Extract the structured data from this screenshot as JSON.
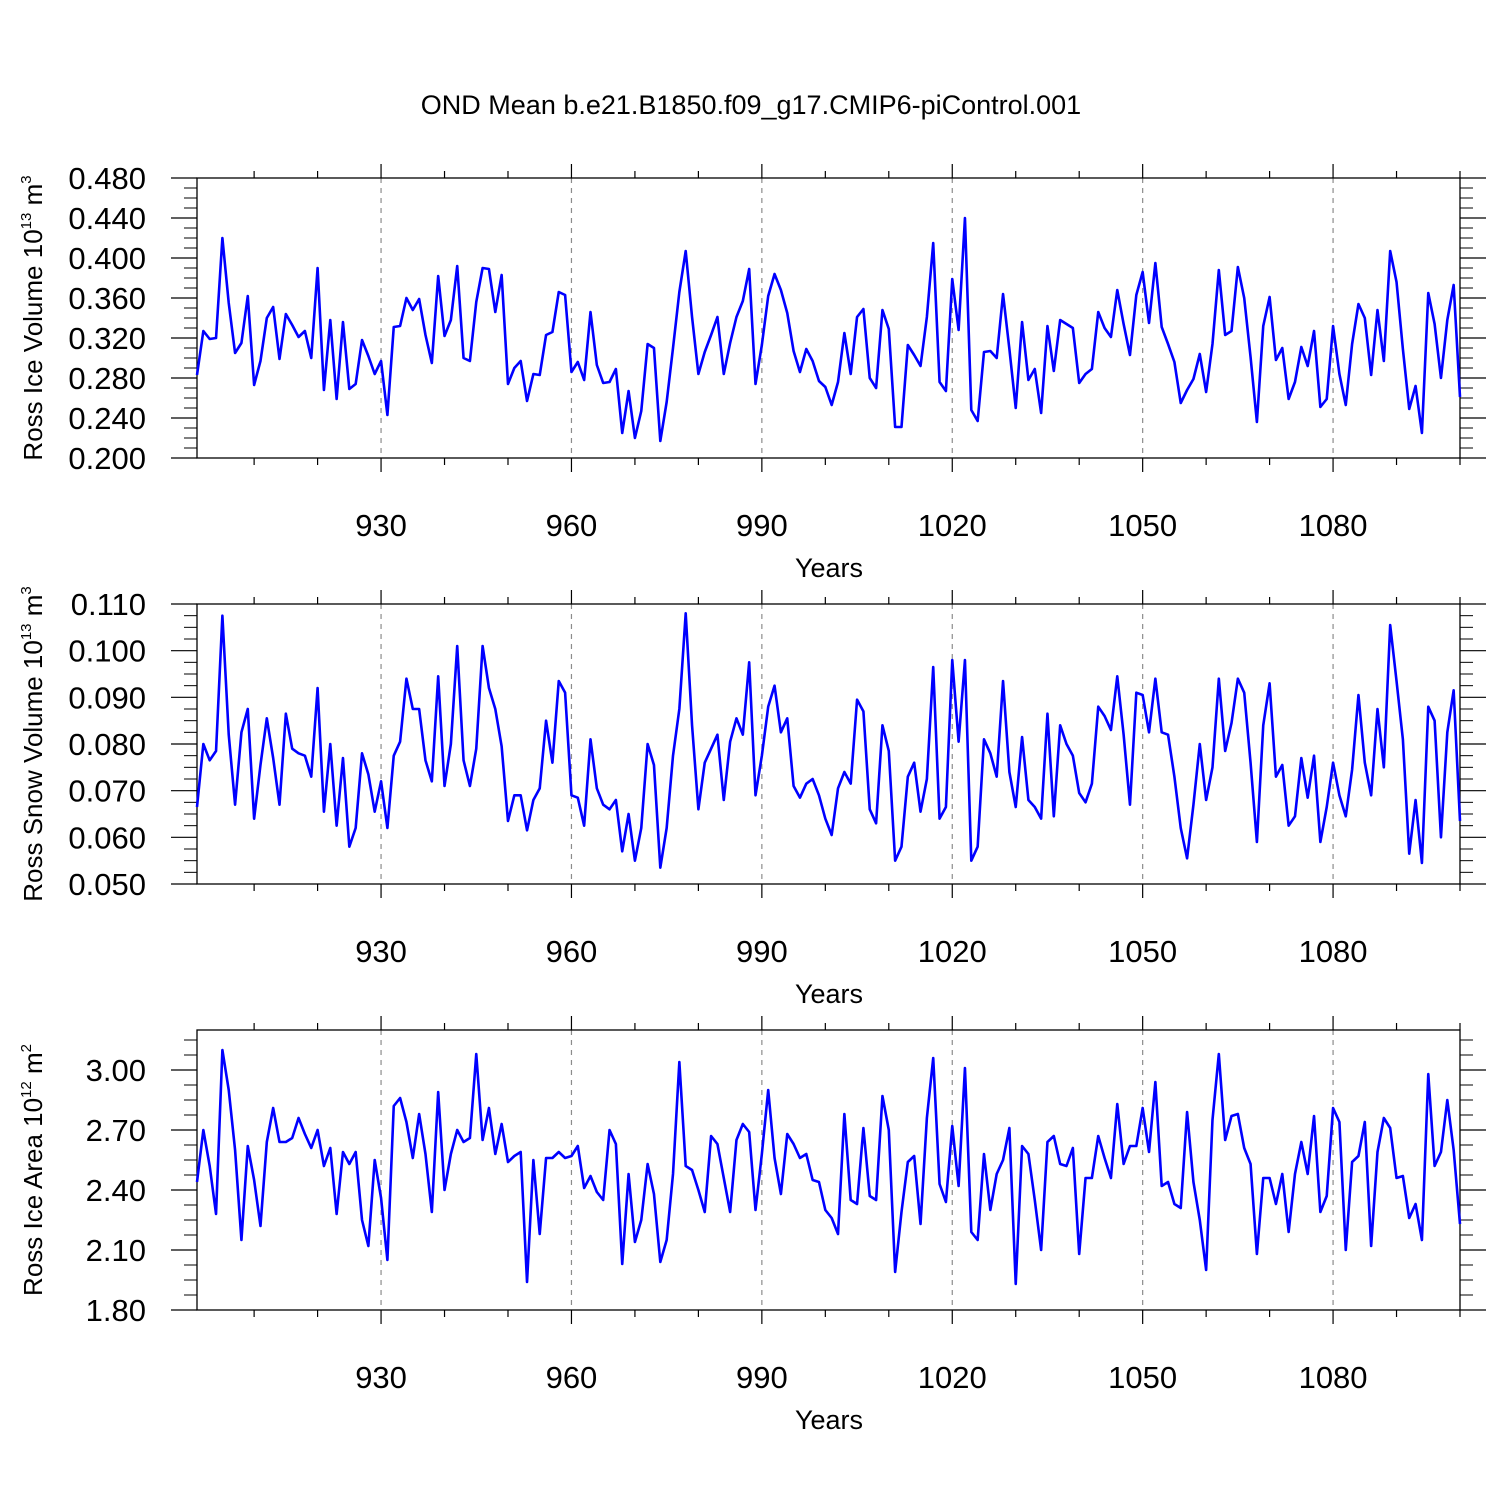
{
  "title": "OND Mean b.e21.B1850.f09_g17.CMIP6-piControl.001",
  "colors": {
    "line": "#0000ff",
    "axis": "#000000",
    "grid": "#8c8c8c"
  },
  "chart_data": [
    {
      "type": "line",
      "name": "ice-volume",
      "title": "OND Mean b.e21.B1850.f09_g17.CMIP6-piControl.001",
      "ylabel": {
        "base": "Ross Ice Volume 10",
        "sup": "13",
        "unit": " m",
        "unit_sup": "3"
      },
      "xlabel": "Years",
      "xlim": [
        901,
        1100
      ],
      "ylim": [
        0.2,
        0.48
      ],
      "yticks": [
        0.2,
        0.24,
        0.28,
        0.32,
        0.36,
        0.4,
        0.44,
        0.48
      ],
      "ytick_labels": [
        "0.200",
        "0.240",
        "0.280",
        "0.320",
        "0.360",
        "0.400",
        "0.440",
        "0.480"
      ],
      "xticks": [
        930,
        960,
        990,
        1020,
        1050,
        1080
      ],
      "xtick_labels": [
        "930",
        "960",
        "990",
        "1020",
        "1050",
        "1080"
      ],
      "grid": "x-dashed",
      "x_start": 901,
      "series": [
        {
          "name": "Ross Ice Volume",
          "values": [
            0.283,
            0.327,
            0.319,
            0.32,
            0.42,
            0.355,
            0.305,
            0.315,
            0.362,
            0.273,
            0.297,
            0.34,
            0.351,
            0.299,
            0.344,
            0.333,
            0.321,
            0.327,
            0.3,
            0.39,
            0.268,
            0.338,
            0.259,
            0.336,
            0.269,
            0.274,
            0.318,
            0.302,
            0.284,
            0.297,
            0.243,
            0.331,
            0.332,
            0.36,
            0.348,
            0.359,
            0.323,
            0.295,
            0.382,
            0.322,
            0.338,
            0.392,
            0.3,
            0.297,
            0.356,
            0.39,
            0.389,
            0.346,
            0.383,
            0.274,
            0.29,
            0.297,
            0.257,
            0.284,
            0.283,
            0.323,
            0.326,
            0.366,
            0.363,
            0.286,
            0.296,
            0.278,
            0.346,
            0.293,
            0.275,
            0.276,
            0.289,
            0.225,
            0.267,
            0.22,
            0.247,
            0.314,
            0.31,
            0.217,
            0.256,
            0.31,
            0.366,
            0.407,
            0.341,
            0.284,
            0.306,
            0.323,
            0.341,
            0.284,
            0.315,
            0.341,
            0.357,
            0.389,
            0.274,
            0.313,
            0.362,
            0.384,
            0.368,
            0.345,
            0.307,
            0.286,
            0.309,
            0.297,
            0.277,
            0.271,
            0.253,
            0.276,
            0.325,
            0.284,
            0.341,
            0.349,
            0.28,
            0.27,
            0.348,
            0.329,
            0.231,
            0.231,
            0.313,
            0.303,
            0.292,
            0.341,
            0.415,
            0.276,
            0.267,
            0.379,
            0.328,
            0.44,
            0.248,
            0.237,
            0.306,
            0.307,
            0.3,
            0.364,
            0.309,
            0.25,
            0.336,
            0.278,
            0.289,
            0.245,
            0.332,
            0.287,
            0.338,
            0.334,
            0.33,
            0.275,
            0.284,
            0.289,
            0.346,
            0.33,
            0.321,
            0.368,
            0.334,
            0.303,
            0.363,
            0.386,
            0.335,
            0.395,
            0.331,
            0.314,
            0.296,
            0.255,
            0.268,
            0.279,
            0.304,
            0.266,
            0.314,
            0.388,
            0.323,
            0.327,
            0.391,
            0.36,
            0.301,
            0.236,
            0.332,
            0.361,
            0.298,
            0.31,
            0.259,
            0.276,
            0.311,
            0.292,
            0.327,
            0.251,
            0.259,
            0.332,
            0.284,
            0.253,
            0.314,
            0.354,
            0.34,
            0.283,
            0.348,
            0.297,
            0.407,
            0.376,
            0.309,
            0.249,
            0.272,
            0.225,
            0.365,
            0.334,
            0.28,
            0.338,
            0.373,
            0.261
          ]
        }
      ]
    },
    {
      "type": "line",
      "name": "snow-volume",
      "ylabel": {
        "base": "Ross Snow Volume 10",
        "sup": "13",
        "unit": " m",
        "unit_sup": "3"
      },
      "xlabel": "Years",
      "xlim": [
        901,
        1100
      ],
      "ylim": [
        0.05,
        0.11
      ],
      "yticks": [
        0.05,
        0.06,
        0.07,
        0.08,
        0.09,
        0.1,
        0.11
      ],
      "ytick_labels": [
        "0.050",
        "0.060",
        "0.070",
        "0.080",
        "0.090",
        "0.100",
        "0.110"
      ],
      "xticks": [
        930,
        960,
        990,
        1020,
        1050,
        1080
      ],
      "xtick_labels": [
        "930",
        "960",
        "990",
        "1020",
        "1050",
        "1080"
      ],
      "grid": "x-dashed",
      "x_start": 901,
      "series": [
        {
          "name": "Ross Snow Volume",
          "values": [
            0.0665,
            0.08,
            0.0765,
            0.0785,
            0.1075,
            0.082,
            0.067,
            0.0825,
            0.0875,
            0.064,
            0.0755,
            0.0855,
            0.077,
            0.067,
            0.0865,
            0.079,
            0.078,
            0.0775,
            0.073,
            0.092,
            0.0655,
            0.08,
            0.0625,
            0.077,
            0.058,
            0.062,
            0.078,
            0.0735,
            0.0655,
            0.072,
            0.062,
            0.0775,
            0.0805,
            0.094,
            0.0875,
            0.0875,
            0.0765,
            0.072,
            0.0945,
            0.071,
            0.08,
            0.101,
            0.0765,
            0.071,
            0.079,
            0.101,
            0.092,
            0.0875,
            0.0795,
            0.0635,
            0.069,
            0.069,
            0.0615,
            0.068,
            0.0705,
            0.085,
            0.076,
            0.0935,
            0.091,
            0.069,
            0.0685,
            0.0625,
            0.081,
            0.0705,
            0.067,
            0.066,
            0.068,
            0.057,
            0.065,
            0.055,
            0.062,
            0.08,
            0.0755,
            0.0535,
            0.062,
            0.0775,
            0.0875,
            0.108,
            0.084,
            0.066,
            0.076,
            0.079,
            0.082,
            0.068,
            0.0805,
            0.0855,
            0.082,
            0.0975,
            0.069,
            0.0775,
            0.088,
            0.0925,
            0.0825,
            0.0855,
            0.071,
            0.0685,
            0.0715,
            0.0725,
            0.069,
            0.064,
            0.0605,
            0.0705,
            0.074,
            0.0715,
            0.0895,
            0.087,
            0.066,
            0.063,
            0.084,
            0.0785,
            0.055,
            0.058,
            0.073,
            0.076,
            0.0655,
            0.0725,
            0.0965,
            0.064,
            0.0665,
            0.098,
            0.0805,
            0.098,
            0.055,
            0.058,
            0.081,
            0.078,
            0.073,
            0.0935,
            0.074,
            0.0665,
            0.0815,
            0.068,
            0.0665,
            0.064,
            0.0865,
            0.0645,
            0.084,
            0.08,
            0.0775,
            0.0695,
            0.0675,
            0.0715,
            0.088,
            0.086,
            0.083,
            0.0945,
            0.082,
            0.067,
            0.091,
            0.0905,
            0.0825,
            0.094,
            0.0825,
            0.082,
            0.073,
            0.062,
            0.0555,
            0.067,
            0.08,
            0.068,
            0.075,
            0.094,
            0.0785,
            0.0845,
            0.094,
            0.091,
            0.076,
            0.059,
            0.084,
            0.093,
            0.073,
            0.0755,
            0.0625,
            0.0645,
            0.077,
            0.0685,
            0.0775,
            0.059,
            0.0665,
            0.076,
            0.069,
            0.0645,
            0.0745,
            0.0905,
            0.076,
            0.069,
            0.0875,
            0.075,
            0.1055,
            0.0935,
            0.081,
            0.0565,
            0.068,
            0.0545,
            0.088,
            0.085,
            0.06,
            0.0825,
            0.0915,
            0.0635
          ]
        }
      ]
    },
    {
      "type": "line",
      "name": "ice-area",
      "ylabel": {
        "base": "Ross Ice Area 10",
        "sup": "12",
        "unit": " m",
        "unit_sup": "2"
      },
      "xlabel": "Years",
      "xlim": [
        901,
        1100
      ],
      "ylim": [
        1.8,
        3.2
      ],
      "yticks": [
        1.8,
        2.1,
        2.4,
        2.7,
        3.0
      ],
      "ytick_labels": [
        "1.80",
        "2.10",
        "2.40",
        "2.70",
        "3.00"
      ],
      "xticks": [
        930,
        960,
        990,
        1020,
        1050,
        1080
      ],
      "xtick_labels": [
        "930",
        "960",
        "990",
        "1020",
        "1050",
        "1080"
      ],
      "grid": "x-dashed",
      "x_start": 901,
      "series": [
        {
          "name": "Ross Ice Area",
          "values": [
            2.44,
            2.7,
            2.52,
            2.28,
            3.1,
            2.9,
            2.6,
            2.15,
            2.62,
            2.45,
            2.22,
            2.64,
            2.81,
            2.64,
            2.64,
            2.66,
            2.76,
            2.68,
            2.61,
            2.7,
            2.52,
            2.61,
            2.28,
            2.59,
            2.53,
            2.59,
            2.25,
            2.12,
            2.55,
            2.36,
            2.05,
            2.82,
            2.86,
            2.74,
            2.56,
            2.78,
            2.58,
            2.29,
            2.89,
            2.4,
            2.58,
            2.7,
            2.64,
            2.66,
            3.08,
            2.65,
            2.81,
            2.58,
            2.73,
            2.54,
            2.57,
            2.59,
            1.94,
            2.55,
            2.18,
            2.56,
            2.56,
            2.59,
            2.56,
            2.57,
            2.62,
            2.41,
            2.47,
            2.39,
            2.35,
            2.7,
            2.63,
            2.03,
            2.48,
            2.14,
            2.25,
            2.53,
            2.38,
            2.04,
            2.15,
            2.48,
            3.04,
            2.52,
            2.5,
            2.4,
            2.29,
            2.67,
            2.63,
            2.46,
            2.29,
            2.65,
            2.73,
            2.69,
            2.3,
            2.58,
            2.9,
            2.56,
            2.38,
            2.68,
            2.63,
            2.56,
            2.58,
            2.45,
            2.44,
            2.3,
            2.26,
            2.18,
            2.78,
            2.35,
            2.33,
            2.71,
            2.37,
            2.35,
            2.87,
            2.7,
            1.99,
            2.29,
            2.54,
            2.57,
            2.23,
            2.76,
            3.06,
            2.43,
            2.34,
            2.72,
            2.42,
            3.01,
            2.19,
            2.15,
            2.58,
            2.3,
            2.48,
            2.55,
            2.71,
            1.93,
            2.62,
            2.58,
            2.35,
            2.1,
            2.64,
            2.67,
            2.53,
            2.52,
            2.61,
            2.08,
            2.46,
            2.46,
            2.67,
            2.56,
            2.46,
            2.83,
            2.53,
            2.62,
            2.62,
            2.81,
            2.59,
            2.94,
            2.42,
            2.44,
            2.33,
            2.31,
            2.79,
            2.44,
            2.25,
            2.0,
            2.75,
            3.08,
            2.65,
            2.77,
            2.78,
            2.61,
            2.53,
            2.08,
            2.46,
            2.46,
            2.33,
            2.48,
            2.19,
            2.48,
            2.64,
            2.48,
            2.77,
            2.29,
            2.37,
            2.81,
            2.74,
            2.1,
            2.54,
            2.57,
            2.74,
            2.12,
            2.59,
            2.76,
            2.71,
            2.46,
            2.47,
            2.26,
            2.33,
            2.15,
            2.98,
            2.52,
            2.59,
            2.85,
            2.6,
            2.23
          ]
        }
      ]
    }
  ]
}
